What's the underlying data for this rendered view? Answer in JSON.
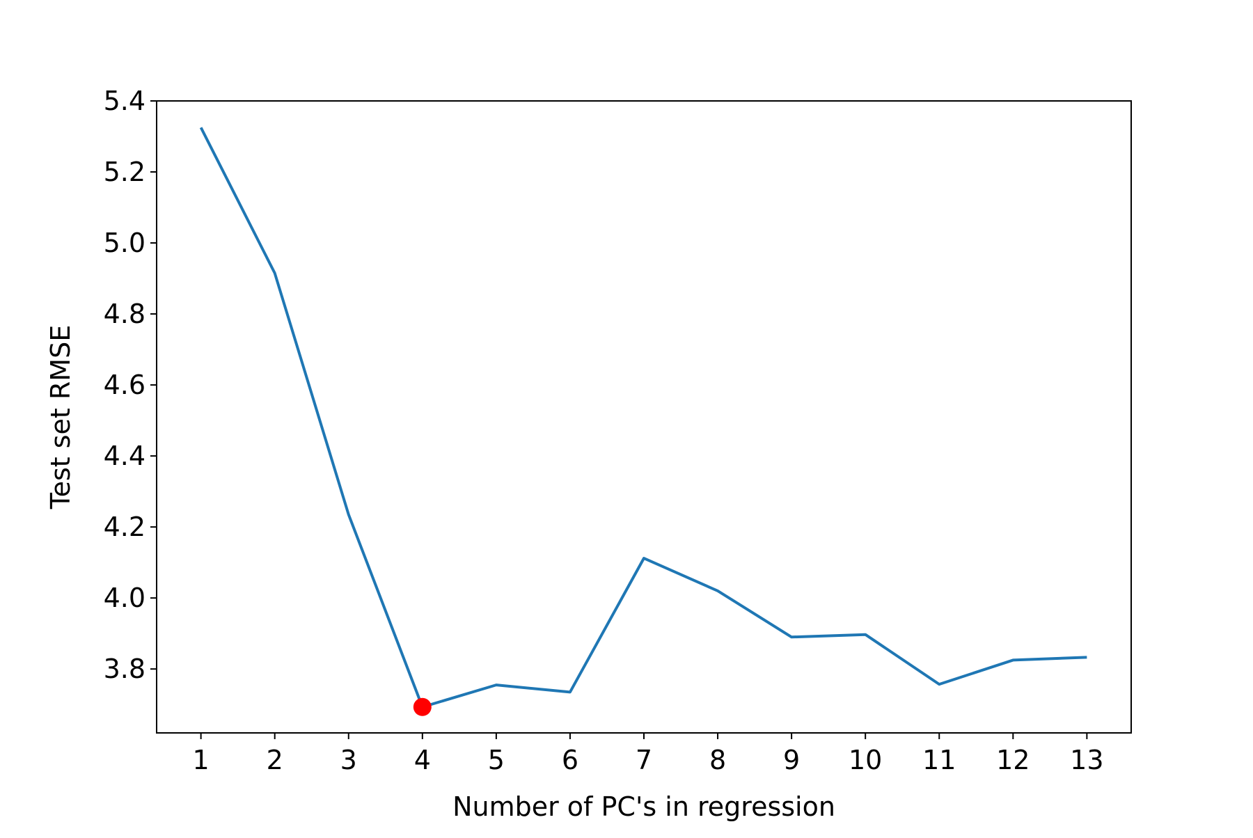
{
  "chart_data": {
    "type": "line",
    "title": "",
    "xlabel": "Number of PC's in regression",
    "ylabel": "Test set RMSE",
    "x": [
      1,
      2,
      3,
      4,
      5,
      6,
      7,
      8,
      9,
      10,
      11,
      12,
      13
    ],
    "series": [
      {
        "values": [
          5.325,
          4.915,
          4.235,
          3.693,
          3.755,
          3.735,
          4.112,
          4.02,
          3.89,
          3.897,
          3.757,
          3.825,
          3.833
        ],
        "color": "#1f77b4"
      }
    ],
    "highlight": {
      "x": 4,
      "y": 3.693,
      "color": "#ff0000"
    },
    "xlim": [
      0.4,
      13.6
    ],
    "ylim": [
      3.62,
      5.4
    ],
    "xticks": [
      "1",
      "2",
      "3",
      "4",
      "5",
      "6",
      "7",
      "8",
      "9",
      "10",
      "11",
      "12",
      "13"
    ],
    "yticks": [
      "3.8",
      "4.0",
      "4.2",
      "4.4",
      "4.6",
      "4.8",
      "5.0",
      "5.2",
      "5.4"
    ],
    "grid": false
  }
}
